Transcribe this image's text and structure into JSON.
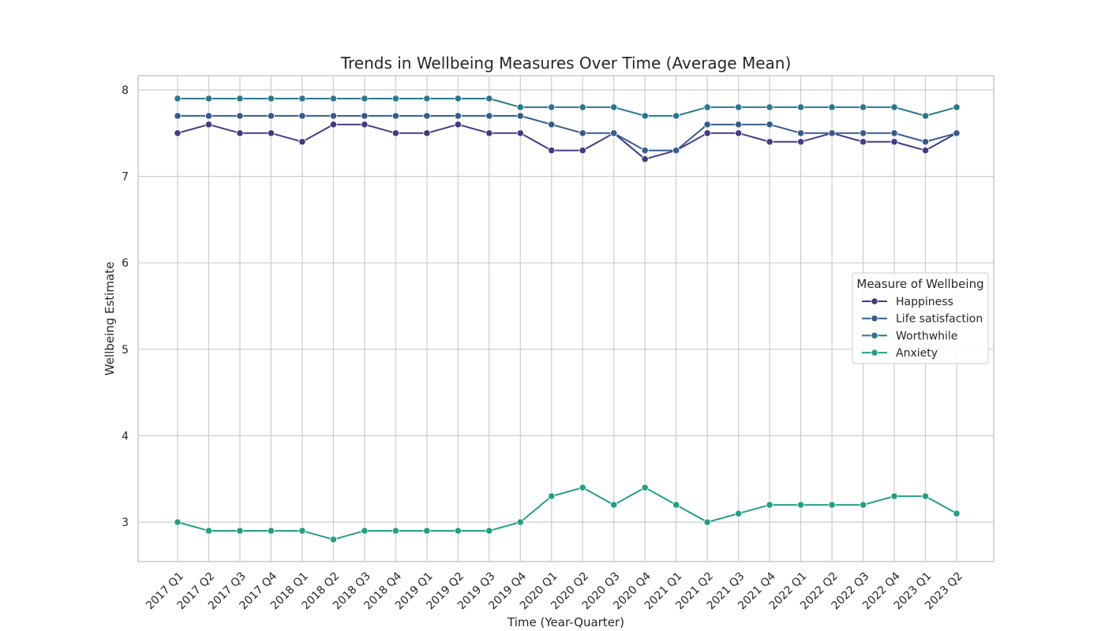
{
  "chart_data": {
    "type": "line",
    "title": "Trends in Wellbeing Measures Over Time (Average Mean)",
    "xlabel": "Time (Year-Quarter)",
    "ylabel": "Wellbeing Estimate",
    "categories": [
      "2017 Q1",
      "2017 Q2",
      "2017 Q3",
      "2017 Q4",
      "2018 Q1",
      "2018 Q2",
      "2018 Q3",
      "2018 Q4",
      "2019 Q1",
      "2019 Q2",
      "2019 Q3",
      "2019 Q4",
      "2020 Q1",
      "2020 Q2",
      "2020 Q3",
      "2020 Q4",
      "2021 Q1",
      "2021 Q2",
      "2021 Q3",
      "2021 Q4",
      "2022 Q1",
      "2022 Q2",
      "2022 Q3",
      "2022 Q4",
      "2023 Q1",
      "2023 Q2"
    ],
    "ylim": [
      2.55,
      8.17
    ],
    "yticks": [
      3,
      4,
      5,
      6,
      7,
      8
    ],
    "grid": true,
    "legend": {
      "title": "Measure of Wellbeing",
      "placement": "center-right"
    },
    "series": [
      {
        "name": "Happiness",
        "color": "#433a83",
        "values": [
          7.5,
          7.6,
          7.5,
          7.5,
          7.4,
          7.6,
          7.6,
          7.5,
          7.5,
          7.6,
          7.5,
          7.5,
          7.3,
          7.3,
          7.5,
          7.2,
          7.3,
          7.5,
          7.5,
          7.4,
          7.4,
          7.5,
          7.4,
          7.4,
          7.3,
          7.5
        ]
      },
      {
        "name": "Life satisfaction",
        "color": "#355c8c",
        "values": [
          7.7,
          7.7,
          7.7,
          7.7,
          7.7,
          7.7,
          7.7,
          7.7,
          7.7,
          7.7,
          7.7,
          7.7,
          7.6,
          7.5,
          7.5,
          7.3,
          7.3,
          7.6,
          7.6,
          7.6,
          7.5,
          7.5,
          7.5,
          7.5,
          7.4,
          7.5
        ]
      },
      {
        "name": "Worthwhile",
        "color": "#29788e",
        "values": [
          7.9,
          7.9,
          7.9,
          7.9,
          7.9,
          7.9,
          7.9,
          7.9,
          7.9,
          7.9,
          7.9,
          7.8,
          7.8,
          7.8,
          7.8,
          7.7,
          7.7,
          7.8,
          7.8,
          7.8,
          7.8,
          7.8,
          7.8,
          7.8,
          7.7,
          7.8
        ]
      },
      {
        "name": "Anxiety",
        "color": "#21a085",
        "values": [
          3.0,
          2.9,
          2.9,
          2.9,
          2.9,
          2.8,
          2.9,
          2.9,
          2.9,
          2.9,
          2.9,
          3.0,
          3.3,
          3.4,
          3.2,
          3.4,
          3.2,
          3.0,
          3.1,
          3.2,
          3.2,
          3.2,
          3.2,
          3.3,
          3.3,
          3.1
        ]
      }
    ]
  }
}
